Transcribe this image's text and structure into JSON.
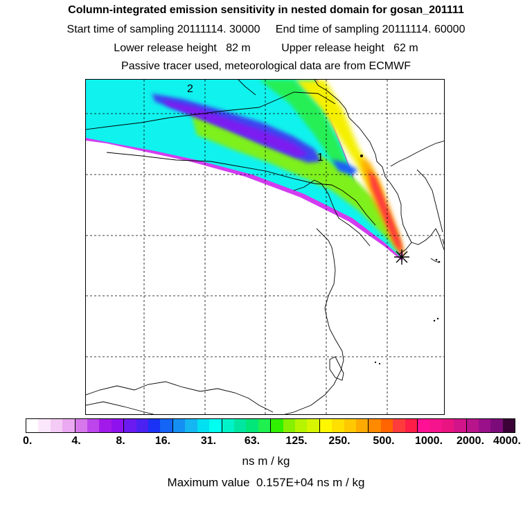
{
  "title": "Column-integrated emission sensitivity in nested domain for gosan_201111",
  "sampling": {
    "start_label": "Start time of sampling",
    "start_value": "20111114. 30000",
    "end_label": "End time of sampling",
    "end_value": "20111114. 60000"
  },
  "release": {
    "lower_label": "Lower release height",
    "lower_value": "82 m",
    "upper_label": "Upper release height",
    "upper_value": "62 m"
  },
  "note": "Passive tracer used, meteorological data are from ECMWF",
  "map": {
    "labels": [
      {
        "text": "2"
      },
      {
        "text": "1"
      }
    ],
    "receptor_icon": "asterisk-receptor-icon"
  },
  "colorbar": {
    "ticks": [
      "0.",
      "4.",
      "8.",
      "16.",
      "31.",
      "63.",
      "125.",
      "250.",
      "500.",
      "1000.",
      "2000.",
      "4000."
    ],
    "colors": [
      "#ffffff",
      "#fbe7fb",
      "#f4cbf4",
      "#eba9f1",
      "#d777ec",
      "#bd45ec",
      "#a21ae9",
      "#8f12ee",
      "#6b1bf0",
      "#4b22f2",
      "#1a32f5",
      "#1464f5",
      "#1590f2",
      "#15b6f2",
      "#00e0f0",
      "#00fff0",
      "#00f2c8",
      "#00e6a0",
      "#00e678",
      "#1ff050",
      "#2ef000",
      "#86f000",
      "#b6f400",
      "#d8f500",
      "#fff700",
      "#ffe000",
      "#ffc800",
      "#ffaa00",
      "#ff8a00",
      "#ff6400",
      "#ff3c3c",
      "#ff1e48",
      "#ff1095",
      "#f5148c",
      "#e91481",
      "#d2148a",
      "#b8148c",
      "#9a108a",
      "#7c0c7a",
      "#3a0236"
    ],
    "units": "ns m / kg"
  },
  "max_value": {
    "label": "Maximum value",
    "value": "0.157E+04 ns m / kg"
  }
}
